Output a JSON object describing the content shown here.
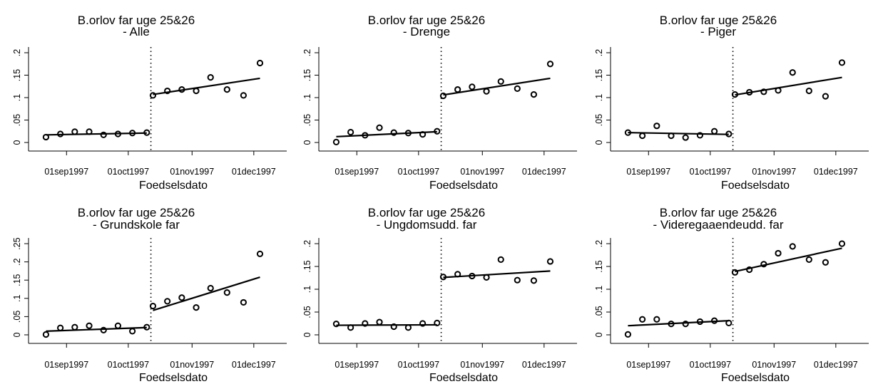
{
  "chart_data": [
    {
      "type": "scatter",
      "title": [
        "B.orlov far uge 25&26",
        "- Alle"
      ],
      "xlabel": "Foedselsdato",
      "ylabel": "",
      "xlim": [
        "1997-08-17",
        "1997-12-17"
      ],
      "ylim": [
        0,
        0.2
      ],
      "yticks": [
        0,
        0.05,
        0.1,
        0.15,
        0.2
      ],
      "ytick_labels": [
        "0",
        ".05",
        ".1",
        ".15",
        ".2"
      ],
      "xticks": [
        "1997-09-01",
        "1997-10-01",
        "1997-11-01",
        "1997-12-01"
      ],
      "xtick_labels": [
        "01sep1997",
        "01oct1997",
        "01nov1997",
        "01dec1997"
      ],
      "cutoff": "1997-10-12",
      "points": [
        {
          "x": "1997-08-22",
          "y": 0.012
        },
        {
          "x": "1997-08-29",
          "y": 0.019
        },
        {
          "x": "1997-09-05",
          "y": 0.024
        },
        {
          "x": "1997-09-12",
          "y": 0.024
        },
        {
          "x": "1997-09-19",
          "y": 0.017
        },
        {
          "x": "1997-09-26",
          "y": 0.019
        },
        {
          "x": "1997-10-03",
          "y": 0.021
        },
        {
          "x": "1997-10-10",
          "y": 0.022
        },
        {
          "x": "1997-10-13",
          "y": 0.105
        },
        {
          "x": "1997-10-20",
          "y": 0.115
        },
        {
          "x": "1997-10-27",
          "y": 0.118
        },
        {
          "x": "1997-11-03",
          "y": 0.115
        },
        {
          "x": "1997-11-10",
          "y": 0.145
        },
        {
          "x": "1997-11-18",
          "y": 0.118
        },
        {
          "x": "1997-11-26",
          "y": 0.105
        },
        {
          "x": "1997-12-04",
          "y": 0.177
        }
      ],
      "fit_lines": [
        {
          "from": {
            "x": "1997-08-22",
            "y": 0.017
          },
          "to": {
            "x": "1997-10-10",
            "y": 0.021
          }
        },
        {
          "from": {
            "x": "1997-10-13",
            "y": 0.107
          },
          "to": {
            "x": "1997-12-04",
            "y": 0.143
          }
        }
      ]
    },
    {
      "type": "scatter",
      "title": [
        "B.orlov far uge 25&26",
        "- Drenge"
      ],
      "xlabel": "Foedselsdato",
      "ylabel": "",
      "xlim": [
        "1997-08-17",
        "1997-12-17"
      ],
      "ylim": [
        0,
        0.2
      ],
      "yticks": [
        0,
        0.05,
        0.1,
        0.15,
        0.2
      ],
      "ytick_labels": [
        "0",
        ".05",
        ".1",
        ".15",
        ".2"
      ],
      "xticks": [
        "1997-09-01",
        "1997-10-01",
        "1997-11-01",
        "1997-12-01"
      ],
      "xtick_labels": [
        "01sep1997",
        "01oct1997",
        "01nov1997",
        "01dec1997"
      ],
      "cutoff": "1997-10-12",
      "points": [
        {
          "x": "1997-08-22",
          "y": 0.001
        },
        {
          "x": "1997-08-29",
          "y": 0.023
        },
        {
          "x": "1997-09-05",
          "y": 0.016
        },
        {
          "x": "1997-09-12",
          "y": 0.033
        },
        {
          "x": "1997-09-19",
          "y": 0.022
        },
        {
          "x": "1997-09-26",
          "y": 0.021
        },
        {
          "x": "1997-10-03",
          "y": 0.018
        },
        {
          "x": "1997-10-10",
          "y": 0.025
        },
        {
          "x": "1997-10-13",
          "y": 0.104
        },
        {
          "x": "1997-10-20",
          "y": 0.118
        },
        {
          "x": "1997-10-27",
          "y": 0.124
        },
        {
          "x": "1997-11-03",
          "y": 0.114
        },
        {
          "x": "1997-11-10",
          "y": 0.136
        },
        {
          "x": "1997-11-18",
          "y": 0.12
        },
        {
          "x": "1997-11-26",
          "y": 0.107
        },
        {
          "x": "1997-12-04",
          "y": 0.175
        }
      ],
      "fit_lines": [
        {
          "from": {
            "x": "1997-08-22",
            "y": 0.013
          },
          "to": {
            "x": "1997-10-10",
            "y": 0.024
          }
        },
        {
          "from": {
            "x": "1997-10-13",
            "y": 0.106
          },
          "to": {
            "x": "1997-12-04",
            "y": 0.143
          }
        }
      ]
    },
    {
      "type": "scatter",
      "title": [
        "B.orlov far uge 25&26",
        "- Piger"
      ],
      "xlabel": "Foedselsdato",
      "ylabel": "",
      "xlim": [
        "1997-08-17",
        "1997-12-17"
      ],
      "ylim": [
        0,
        0.2
      ],
      "yticks": [
        0,
        0.05,
        0.1,
        0.15,
        0.2
      ],
      "ytick_labels": [
        "0",
        ".05",
        ".1",
        ".15",
        ".2"
      ],
      "xticks": [
        "1997-09-01",
        "1997-10-01",
        "1997-11-01",
        "1997-12-01"
      ],
      "xtick_labels": [
        "01sep1997",
        "01oct1997",
        "01nov1997",
        "01dec1997"
      ],
      "cutoff": "1997-10-12",
      "points": [
        {
          "x": "1997-08-22",
          "y": 0.022
        },
        {
          "x": "1997-08-29",
          "y": 0.015
        },
        {
          "x": "1997-09-05",
          "y": 0.037
        },
        {
          "x": "1997-09-12",
          "y": 0.015
        },
        {
          "x": "1997-09-19",
          "y": 0.011
        },
        {
          "x": "1997-09-26",
          "y": 0.016
        },
        {
          "x": "1997-10-03",
          "y": 0.025
        },
        {
          "x": "1997-10-10",
          "y": 0.019
        },
        {
          "x": "1997-10-13",
          "y": 0.107
        },
        {
          "x": "1997-10-20",
          "y": 0.112
        },
        {
          "x": "1997-10-27",
          "y": 0.113
        },
        {
          "x": "1997-11-03",
          "y": 0.116
        },
        {
          "x": "1997-11-10",
          "y": 0.156
        },
        {
          "x": "1997-11-18",
          "y": 0.115
        },
        {
          "x": "1997-11-26",
          "y": 0.103
        },
        {
          "x": "1997-12-04",
          "y": 0.178
        }
      ],
      "fit_lines": [
        {
          "from": {
            "x": "1997-08-22",
            "y": 0.022
          },
          "to": {
            "x": "1997-10-10",
            "y": 0.018
          }
        },
        {
          "from": {
            "x": "1997-10-13",
            "y": 0.106
          },
          "to": {
            "x": "1997-12-04",
            "y": 0.145
          }
        }
      ]
    },
    {
      "type": "scatter",
      "title": [
        "B.orlov far uge 25&26",
        "- Grundskole far"
      ],
      "xlabel": "Foedselsdato",
      "ylabel": "",
      "xlim": [
        "1997-08-17",
        "1997-12-17"
      ],
      "ylim": [
        0,
        0.25
      ],
      "yticks": [
        0,
        0.05,
        0.1,
        0.15,
        0.2,
        0.25
      ],
      "ytick_labels": [
        "0",
        ".05",
        ".1",
        ".15",
        ".2",
        ".25"
      ],
      "xticks": [
        "1997-09-01",
        "1997-10-01",
        "1997-11-01",
        "1997-12-01"
      ],
      "xtick_labels": [
        "01sep1997",
        "01oct1997",
        "01nov1997",
        "01dec1997"
      ],
      "cutoff": "1997-10-12",
      "points": [
        {
          "x": "1997-08-22",
          "y": 0.001
        },
        {
          "x": "1997-08-29",
          "y": 0.019
        },
        {
          "x": "1997-09-05",
          "y": 0.021
        },
        {
          "x": "1997-09-12",
          "y": 0.025
        },
        {
          "x": "1997-09-19",
          "y": 0.013
        },
        {
          "x": "1997-09-26",
          "y": 0.025
        },
        {
          "x": "1997-10-03",
          "y": 0.01
        },
        {
          "x": "1997-10-10",
          "y": 0.021
        },
        {
          "x": "1997-10-13",
          "y": 0.079
        },
        {
          "x": "1997-10-20",
          "y": 0.092
        },
        {
          "x": "1997-10-27",
          "y": 0.102
        },
        {
          "x": "1997-11-03",
          "y": 0.075
        },
        {
          "x": "1997-11-10",
          "y": 0.128
        },
        {
          "x": "1997-11-18",
          "y": 0.116
        },
        {
          "x": "1997-11-26",
          "y": 0.089
        },
        {
          "x": "1997-12-04",
          "y": 0.222
        }
      ],
      "fit_lines": [
        {
          "from": {
            "x": "1997-08-22",
            "y": 0.01
          },
          "to": {
            "x": "1997-10-10",
            "y": 0.02
          }
        },
        {
          "from": {
            "x": "1997-10-13",
            "y": 0.067
          },
          "to": {
            "x": "1997-12-04",
            "y": 0.158
          }
        }
      ]
    },
    {
      "type": "scatter",
      "title": [
        "B.orlov far uge 25&26",
        "- Ungdomsudd. far"
      ],
      "xlabel": "Foedselsdato",
      "ylabel": "",
      "xlim": [
        "1997-08-17",
        "1997-12-17"
      ],
      "ylim": [
        0,
        0.2
      ],
      "yticks": [
        0,
        0.05,
        0.1,
        0.15,
        0.2
      ],
      "ytick_labels": [
        "0",
        ".05",
        ".1",
        ".15",
        ".2"
      ],
      "xticks": [
        "1997-09-01",
        "1997-10-01",
        "1997-11-01",
        "1997-12-01"
      ],
      "xtick_labels": [
        "01sep1997",
        "01oct1997",
        "01nov1997",
        "01dec1997"
      ],
      "cutoff": "1997-10-12",
      "points": [
        {
          "x": "1997-08-22",
          "y": 0.024
        },
        {
          "x": "1997-08-29",
          "y": 0.016
        },
        {
          "x": "1997-09-05",
          "y": 0.025
        },
        {
          "x": "1997-09-12",
          "y": 0.028
        },
        {
          "x": "1997-09-19",
          "y": 0.018
        },
        {
          "x": "1997-09-26",
          "y": 0.016
        },
        {
          "x": "1997-10-03",
          "y": 0.025
        },
        {
          "x": "1997-10-10",
          "y": 0.026
        },
        {
          "x": "1997-10-13",
          "y": 0.127
        },
        {
          "x": "1997-10-20",
          "y": 0.133
        },
        {
          "x": "1997-10-27",
          "y": 0.129
        },
        {
          "x": "1997-11-03",
          "y": 0.126
        },
        {
          "x": "1997-11-10",
          "y": 0.165
        },
        {
          "x": "1997-11-18",
          "y": 0.12
        },
        {
          "x": "1997-11-26",
          "y": 0.119
        },
        {
          "x": "1997-12-04",
          "y": 0.161
        }
      ],
      "fit_lines": [
        {
          "from": {
            "x": "1997-08-22",
            "y": 0.021
          },
          "to": {
            "x": "1997-10-10",
            "y": 0.022
          }
        },
        {
          "from": {
            "x": "1997-10-13",
            "y": 0.126
          },
          "to": {
            "x": "1997-12-04",
            "y": 0.14
          }
        }
      ]
    },
    {
      "type": "scatter",
      "title": [
        "B.orlov far uge 25&26",
        "- Videregaaendeudd. far"
      ],
      "xlabel": "Foedselsdato",
      "ylabel": "",
      "xlim": [
        "1997-08-17",
        "1997-12-17"
      ],
      "ylim": [
        0,
        0.2
      ],
      "yticks": [
        0,
        0.05,
        0.1,
        0.15,
        0.2
      ],
      "ytick_labels": [
        "0",
        ".05",
        ".1",
        ".15",
        ".2"
      ],
      "xticks": [
        "1997-09-01",
        "1997-10-01",
        "1997-11-01",
        "1997-12-01"
      ],
      "xtick_labels": [
        "01sep1997",
        "01oct1997",
        "01nov1997",
        "01dec1997"
      ],
      "cutoff": "1997-10-12",
      "points": [
        {
          "x": "1997-08-22",
          "y": 0.001
        },
        {
          "x": "1997-08-29",
          "y": 0.034
        },
        {
          "x": "1997-09-05",
          "y": 0.034
        },
        {
          "x": "1997-09-12",
          "y": 0.024
        },
        {
          "x": "1997-09-19",
          "y": 0.024
        },
        {
          "x": "1997-09-26",
          "y": 0.029
        },
        {
          "x": "1997-10-03",
          "y": 0.031
        },
        {
          "x": "1997-10-10",
          "y": 0.026
        },
        {
          "x": "1997-10-13",
          "y": 0.137
        },
        {
          "x": "1997-10-20",
          "y": 0.143
        },
        {
          "x": "1997-10-27",
          "y": 0.155
        },
        {
          "x": "1997-11-03",
          "y": 0.179
        },
        {
          "x": "1997-11-10",
          "y": 0.194
        },
        {
          "x": "1997-11-18",
          "y": 0.165
        },
        {
          "x": "1997-11-26",
          "y": 0.159
        },
        {
          "x": "1997-12-04",
          "y": 0.2
        }
      ],
      "fit_lines": [
        {
          "from": {
            "x": "1997-08-22",
            "y": 0.02
          },
          "to": {
            "x": "1997-10-10",
            "y": 0.031
          }
        },
        {
          "from": {
            "x": "1997-10-13",
            "y": 0.139
          },
          "to": {
            "x": "1997-12-04",
            "y": 0.19
          }
        }
      ]
    }
  ]
}
